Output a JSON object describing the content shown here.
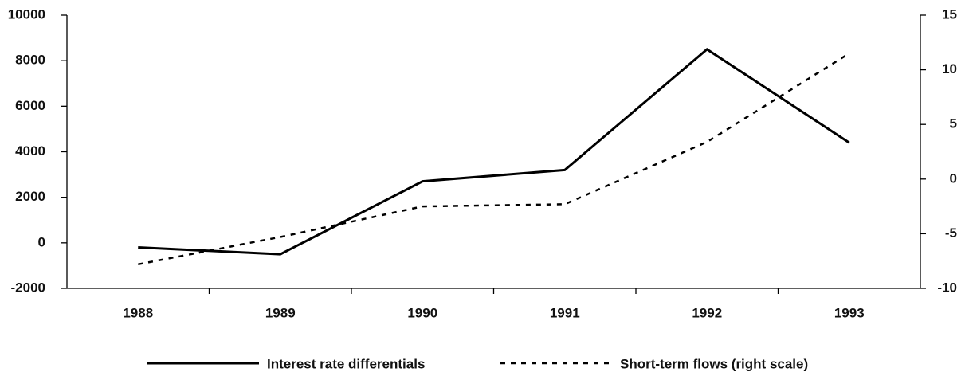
{
  "chart_data": {
    "type": "line",
    "categories": [
      "1988",
      "1989",
      "1990",
      "1991",
      "1992",
      "1993"
    ],
    "ylim": [
      -2000,
      10000
    ],
    "yticks": [
      -2000,
      0,
      2000,
      4000,
      6000,
      8000,
      10000
    ],
    "y2lim": [
      -10,
      15
    ],
    "y2ticks": [
      -10,
      -5,
      0,
      5,
      10,
      15
    ],
    "series": [
      {
        "name": "Interest rate differentials",
        "color": "#000000",
        "style": "solid",
        "values": [
          -200,
          -500,
          2700,
          3200,
          8500,
          4400
        ]
      },
      {
        "name": "Short-term flows (right scale)",
        "color": "#000000",
        "style": "dashed",
        "axis": "y2",
        "values": [
          -7.8,
          -5.3,
          -2.5,
          -2.3,
          3.4,
          11.5
        ]
      }
    ]
  }
}
